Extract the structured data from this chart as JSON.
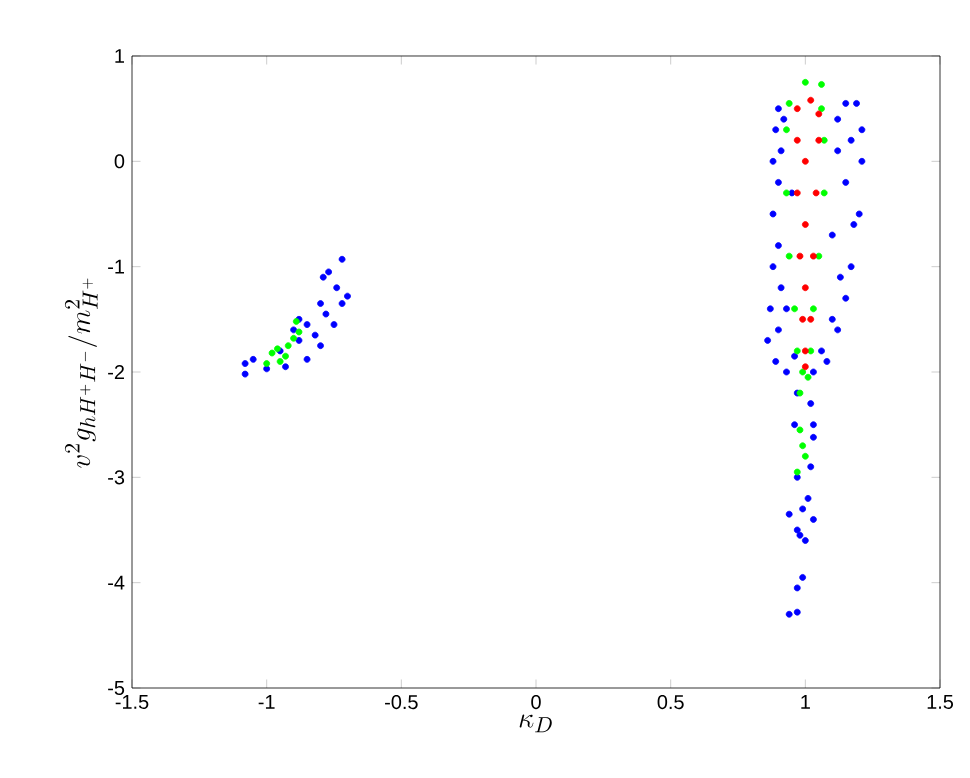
{
  "chart_data": {
    "type": "scatter",
    "xlabel": "\\kappa_{D}",
    "ylabel": "v^{2} g_{hH^{+}H^{-}}/m^{2}_{H^{+}}",
    "xlim": [
      -1.5,
      1.5
    ],
    "ylim": [
      -5,
      1
    ],
    "xticks": [
      -1.5,
      -1,
      -0.5,
      0,
      0.5,
      1,
      1.5
    ],
    "yticks": [
      -5,
      -4,
      -3,
      -2,
      -1,
      0,
      1
    ],
    "grid": false,
    "marker": "circle",
    "series": [
      {
        "color": "#0000ff",
        "x": [
          0.9,
          0.89,
          0.88,
          0.88,
          0.88,
          0.87,
          0.86,
          0.89,
          0.93,
          1.15,
          1.19,
          1.21,
          1.21,
          1.2,
          1.17,
          1.15,
          1.12,
          1.08,
          1.03,
          0.92,
          1.12,
          0.9,
          1.15,
          1.18,
          0.9,
          1.13,
          0.91,
          1.1,
          0.9,
          1.06,
          0.96,
          0.95,
          1.1,
          0.93,
          1.12,
          1.17,
          0.91,
          0.97,
          1.02,
          1.03,
          0.96,
          1.03,
          1.02,
          0.97,
          0.99,
          0.94,
          0.97,
          0.98,
          1.0,
          0.99,
          0.97,
          0.94,
          0.97,
          1.03,
          1.01,
          -1.08,
          -1.08,
          -1.0,
          -1.05,
          -0.95,
          -0.93,
          -0.88,
          -0.85,
          -0.9,
          -0.82,
          -0.8,
          -0.85,
          -0.78,
          -0.75,
          -0.72,
          -0.7,
          -0.74,
          -0.77,
          -0.79,
          -0.72,
          -0.8,
          -0.88
        ],
        "values": [
          0.5,
          0.3,
          0,
          -0.5,
          -1.0,
          -1.4,
          -1.7,
          -1.9,
          -2.0,
          0.55,
          0.55,
          0.3,
          0,
          -0.5,
          -1.0,
          -1.3,
          -1.6,
          -1.9,
          -2.0,
          0.4,
          0.4,
          -0.2,
          -0.2,
          -0.6,
          -0.8,
          -1.1,
          -1.2,
          -1.5,
          -1.6,
          -1.8,
          -1.85,
          -0.3,
          -0.7,
          -1.4,
          0.1,
          0.2,
          0.1,
          -2.2,
          -2.3,
          -2.5,
          -2.5,
          -2.62,
          -2.9,
          -3.0,
          -3.3,
          -3.35,
          -3.5,
          -3.55,
          -3.6,
          -3.95,
          -4.05,
          -4.3,
          -4.28,
          -3.4,
          -3.2,
          -2.02,
          -1.92,
          -1.97,
          -1.88,
          -1.8,
          -1.95,
          -1.7,
          -1.88,
          -1.6,
          -1.65,
          -1.75,
          -1.55,
          -1.45,
          -1.55,
          -1.35,
          -1.28,
          -1.2,
          -1.05,
          -1.1,
          -0.93,
          -1.35,
          -1.5
        ]
      },
      {
        "color": "#00ff00",
        "x": [
          0.94,
          0.93,
          0.93,
          0.94,
          0.96,
          0.97,
          0.99,
          0.98,
          1.06,
          1.07,
          1.07,
          1.05,
          1.03,
          1.02,
          1.01,
          1.0,
          1.06,
          0.98,
          0.99,
          1.0,
          0.97,
          -1.0,
          -0.98,
          -0.95,
          -0.92,
          -0.9,
          -0.88,
          -0.93,
          -0.96,
          -0.89
        ],
        "values": [
          0.55,
          0.3,
          -0.3,
          -0.9,
          -1.4,
          -1.8,
          -2.0,
          -2.2,
          0.5,
          0.2,
          -0.3,
          -0.9,
          -1.4,
          -1.8,
          -2.05,
          0.75,
          0.73,
          -2.55,
          -2.7,
          -2.8,
          -2.95,
          -1.92,
          -1.82,
          -1.9,
          -1.75,
          -1.68,
          -1.62,
          -1.85,
          -1.78,
          -1.52
        ]
      },
      {
        "color": "#ff0000",
        "x": [
          0.97,
          1.02,
          1.05,
          0.97,
          1.05,
          1.0,
          0.97,
          1.04,
          1.0,
          0.98,
          1.03,
          1.0,
          0.99,
          1.02,
          1.0,
          1.0
        ],
        "values": [
          0.5,
          0.58,
          0.45,
          0.2,
          0.2,
          0,
          -0.3,
          -0.3,
          -0.6,
          -0.9,
          -0.9,
          -1.2,
          -1.5,
          -1.5,
          -1.8,
          -1.95
        ]
      }
    ]
  }
}
